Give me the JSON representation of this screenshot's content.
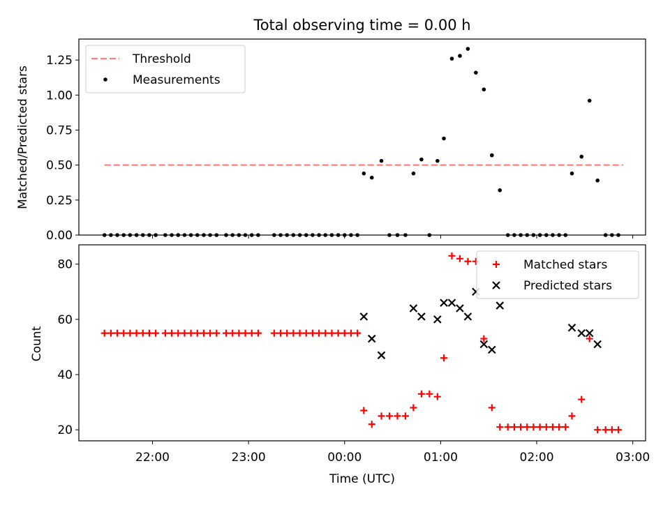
{
  "chart_data": [
    {
      "type": "scatter",
      "panel": "top",
      "title": "Total observing time = 0.00 h",
      "xlabel": "",
      "ylabel": "Matched/Predicted stars",
      "ylim": [
        0,
        1.4
      ],
      "yticks": [
        0,
        0.25,
        0.5,
        0.75,
        1.0,
        1.25
      ],
      "ytick_labels": [
        "0.00",
        "0.25",
        "0.50",
        "0.75",
        "1.00",
        "1.25"
      ],
      "xlim": [
        "21:14",
        "03:08"
      ],
      "legend_position": "upper-left",
      "series": [
        {
          "name": "Threshold",
          "kind": "line",
          "style": "dashed",
          "color": "#ff7f7f",
          "points": [
            [
              "21:30",
              0.5
            ],
            [
              "02:54",
              0.5
            ]
          ]
        },
        {
          "name": "Measurements",
          "kind": "scatter",
          "marker": "dot",
          "color": "#000000",
          "points": [
            [
              "21:30",
              0
            ],
            [
              "21:34",
              0
            ],
            [
              "21:38",
              0
            ],
            [
              "21:42",
              0
            ],
            [
              "21:46",
              0
            ],
            [
              "21:50",
              0
            ],
            [
              "21:54",
              0
            ],
            [
              "21:58",
              0
            ],
            [
              "22:02",
              0
            ],
            [
              "22:08",
              0
            ],
            [
              "22:12",
              0
            ],
            [
              "22:16",
              0
            ],
            [
              "22:20",
              0
            ],
            [
              "22:24",
              0
            ],
            [
              "22:28",
              0
            ],
            [
              "22:32",
              0
            ],
            [
              "22:36",
              0
            ],
            [
              "22:40",
              0
            ],
            [
              "22:46",
              0
            ],
            [
              "22:50",
              0
            ],
            [
              "22:54",
              0
            ],
            [
              "22:58",
              0
            ],
            [
              "23:02",
              0
            ],
            [
              "23:06",
              0
            ],
            [
              "23:16",
              0
            ],
            [
              "23:20",
              0
            ],
            [
              "23:24",
              0
            ],
            [
              "23:28",
              0
            ],
            [
              "23:32",
              0
            ],
            [
              "23:36",
              0
            ],
            [
              "23:40",
              0
            ],
            [
              "23:44",
              0
            ],
            [
              "23:48",
              0
            ],
            [
              "23:52",
              0
            ],
            [
              "23:56",
              0
            ],
            [
              "00:00",
              0
            ],
            [
              "00:04",
              0
            ],
            [
              "00:08",
              0
            ],
            [
              "00:12",
              0.44
            ],
            [
              "00:17",
              0.41
            ],
            [
              "00:23",
              0.53
            ],
            [
              "00:28",
              0
            ],
            [
              "00:33",
              0
            ],
            [
              "00:38",
              0
            ],
            [
              "00:43",
              0.44
            ],
            [
              "00:48",
              0.54
            ],
            [
              "00:53",
              0
            ],
            [
              "00:58",
              0.53
            ],
            [
              "01:02",
              0.69
            ],
            [
              "01:07",
              1.26
            ],
            [
              "01:12",
              1.28
            ],
            [
              "01:17",
              1.33
            ],
            [
              "01:22",
              1.16
            ],
            [
              "01:27",
              1.04
            ],
            [
              "01:32",
              0.57
            ],
            [
              "01:37",
              0.32
            ],
            [
              "01:42",
              0
            ],
            [
              "01:46",
              0
            ],
            [
              "01:50",
              0
            ],
            [
              "01:54",
              0
            ],
            [
              "01:58",
              0
            ],
            [
              "02:02",
              0
            ],
            [
              "02:06",
              0
            ],
            [
              "02:10",
              0
            ],
            [
              "02:14",
              0
            ],
            [
              "02:18",
              0
            ],
            [
              "02:22",
              0.44
            ],
            [
              "02:28",
              0.56
            ],
            [
              "02:33",
              0.96
            ],
            [
              "02:38",
              0.39
            ],
            [
              "02:43",
              0
            ],
            [
              "02:47",
              0
            ],
            [
              "02:51",
              0
            ]
          ]
        }
      ]
    },
    {
      "type": "scatter",
      "panel": "bottom",
      "title": "",
      "xlabel": "Time (UTC)",
      "ylabel": "Count",
      "ylim": [
        16,
        87
      ],
      "yticks": [
        20,
        40,
        60,
        80
      ],
      "ytick_labels": [
        "20",
        "40",
        "60",
        "80"
      ],
      "xlim": [
        "21:14",
        "03:08"
      ],
      "xticks": [
        "22:00",
        "23:00",
        "00:00",
        "01:00",
        "02:00",
        "03:00"
      ],
      "xtick_labels": [
        "22:00",
        "23:00",
        "00:00",
        "01:00",
        "02:00",
        "03:00"
      ],
      "legend_position": "upper-right",
      "series": [
        {
          "name": "Matched stars",
          "kind": "scatter",
          "marker": "plus",
          "color": "#ff0000",
          "points": [
            [
              "21:30",
              55
            ],
            [
              "21:34",
              55
            ],
            [
              "21:38",
              55
            ],
            [
              "21:42",
              55
            ],
            [
              "21:46",
              55
            ],
            [
              "21:50",
              55
            ],
            [
              "21:54",
              55
            ],
            [
              "21:58",
              55
            ],
            [
              "22:02",
              55
            ],
            [
              "22:08",
              55
            ],
            [
              "22:12",
              55
            ],
            [
              "22:16",
              55
            ],
            [
              "22:20",
              55
            ],
            [
              "22:24",
              55
            ],
            [
              "22:28",
              55
            ],
            [
              "22:32",
              55
            ],
            [
              "22:36",
              55
            ],
            [
              "22:40",
              55
            ],
            [
              "22:46",
              55
            ],
            [
              "22:50",
              55
            ],
            [
              "22:54",
              55
            ],
            [
              "22:58",
              55
            ],
            [
              "23:02",
              55
            ],
            [
              "23:06",
              55
            ],
            [
              "23:16",
              55
            ],
            [
              "23:20",
              55
            ],
            [
              "23:24",
              55
            ],
            [
              "23:28",
              55
            ],
            [
              "23:32",
              55
            ],
            [
              "23:36",
              55
            ],
            [
              "23:40",
              55
            ],
            [
              "23:44",
              55
            ],
            [
              "23:48",
              55
            ],
            [
              "23:52",
              55
            ],
            [
              "23:56",
              55
            ],
            [
              "00:00",
              55
            ],
            [
              "00:04",
              55
            ],
            [
              "00:08",
              55
            ],
            [
              "00:12",
              27
            ],
            [
              "00:17",
              22
            ],
            [
              "00:23",
              25
            ],
            [
              "00:28",
              25
            ],
            [
              "00:33",
              25
            ],
            [
              "00:38",
              25
            ],
            [
              "00:43",
              28
            ],
            [
              "00:48",
              33
            ],
            [
              "00:53",
              33
            ],
            [
              "00:58",
              32
            ],
            [
              "01:02",
              46
            ],
            [
              "01:07",
              83
            ],
            [
              "01:12",
              82
            ],
            [
              "01:17",
              81
            ],
            [
              "01:22",
              81
            ],
            [
              "01:27",
              53
            ],
            [
              "01:32",
              28
            ],
            [
              "01:37",
              21
            ],
            [
              "01:42",
              21
            ],
            [
              "01:46",
              21
            ],
            [
              "01:50",
              21
            ],
            [
              "01:54",
              21
            ],
            [
              "01:58",
              21
            ],
            [
              "02:02",
              21
            ],
            [
              "02:06",
              21
            ],
            [
              "02:10",
              21
            ],
            [
              "02:14",
              21
            ],
            [
              "02:18",
              21
            ],
            [
              "02:22",
              25
            ],
            [
              "02:28",
              31
            ],
            [
              "02:33",
              53
            ],
            [
              "02:38",
              20
            ],
            [
              "02:43",
              20
            ],
            [
              "02:47",
              20
            ],
            [
              "02:51",
              20
            ]
          ]
        },
        {
          "name": "Predicted stars",
          "kind": "scatter",
          "marker": "x",
          "color": "#000000",
          "points": [
            [
              "00:12",
              61
            ],
            [
              "00:17",
              53
            ],
            [
              "00:23",
              47
            ],
            [
              "00:43",
              64
            ],
            [
              "00:48",
              61
            ],
            [
              "00:58",
              60
            ],
            [
              "01:02",
              66
            ],
            [
              "01:07",
              66
            ],
            [
              "01:12",
              64
            ],
            [
              "01:17",
              61
            ],
            [
              "01:22",
              70
            ],
            [
              "01:27",
              51
            ],
            [
              "01:32",
              49
            ],
            [
              "01:37",
              65
            ],
            [
              "02:22",
              57
            ],
            [
              "02:28",
              55
            ],
            [
              "02:33",
              55
            ],
            [
              "02:38",
              51
            ]
          ]
        }
      ]
    }
  ]
}
